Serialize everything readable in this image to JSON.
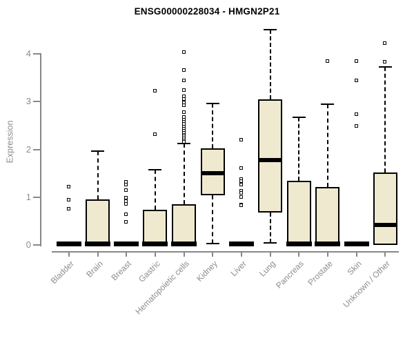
{
  "chart_data": {
    "type": "boxplot",
    "title": "ENSG00000228034 - HMGN2P21",
    "xlabel": "",
    "ylabel": "Expression",
    "yticks": [
      0,
      1,
      2,
      3,
      4
    ],
    "ylim": [
      0,
      4.6
    ],
    "grid": false,
    "legend": "none",
    "colors": {
      "box_fill": "#EFE9CF",
      "box_border": "#000000",
      "axis": "#878787",
      "tick_label": "#8c8c8c",
      "title": "#000000"
    },
    "categories": [
      "Bladder",
      "Brain",
      "Breast",
      "Gastric",
      "Hematopoietic cells",
      "Kidney",
      "Liver",
      "Lung",
      "Pancreas",
      "Prostate",
      "Skin",
      "Unknown / Other"
    ],
    "boxes": [
      {
        "category": "Bladder",
        "low": 0,
        "q1": 0,
        "median": 0,
        "q3": 0,
        "high": 0,
        "outliers": [
          1.22,
          0.94,
          0.75
        ]
      },
      {
        "category": "Brain",
        "low": 0,
        "q1": 0,
        "median": 0,
        "q3": 0.95,
        "high": 1.97,
        "outliers": []
      },
      {
        "category": "Breast",
        "low": 0,
        "q1": 0,
        "median": 0,
        "q3": 0,
        "high": 0,
        "outliers": [
          1.31,
          1.25,
          1.14,
          0.98,
          0.91,
          0.85,
          0.63,
          0.47
        ]
      },
      {
        "category": "Gastric",
        "low": 0,
        "q1": 0,
        "median": 0,
        "q3": 0.73,
        "high": 1.58,
        "outliers": [
          3.22,
          2.31
        ]
      },
      {
        "category": "Hematopoietic cells",
        "low": 0,
        "q1": 0,
        "median": 0,
        "q3": 0.85,
        "high": 2.12,
        "outliers": [
          4.03,
          3.66,
          3.44,
          3.24,
          3.1,
          3.05,
          2.98,
          2.92,
          2.77,
          2.67,
          2.62,
          2.57,
          2.52,
          2.47,
          2.43,
          2.38,
          2.34,
          2.3,
          2.26,
          2.22,
          2.18,
          2.15
        ]
      },
      {
        "category": "Kidney",
        "low": 0.03,
        "q1": 1.04,
        "median": 1.5,
        "q3": 2.02,
        "high": 2.96,
        "outliers": []
      },
      {
        "category": "Liver",
        "low": 0,
        "q1": 0,
        "median": 0,
        "q3": 0,
        "high": 0,
        "outliers": [
          2.2,
          1.61,
          1.37,
          1.33,
          1.25,
          1.13,
          1.08,
          0.99,
          0.84,
          0.82
        ]
      },
      {
        "category": "Lung",
        "low": 0.05,
        "q1": 0.68,
        "median": 1.77,
        "q3": 3.05,
        "high": 4.51,
        "outliers": []
      },
      {
        "category": "Pancreas",
        "low": 0,
        "q1": 0,
        "median": 0,
        "q3": 1.35,
        "high": 2.67,
        "outliers": []
      },
      {
        "category": "Prostate",
        "low": 0,
        "q1": 0,
        "median": 0,
        "q3": 1.22,
        "high": 2.94,
        "outliers": [
          3.84
        ]
      },
      {
        "category": "Skin",
        "low": 0,
        "q1": 0,
        "median": 0,
        "q3": 0,
        "high": 0,
        "outliers": [
          3.84,
          3.43,
          2.73,
          2.48
        ]
      },
      {
        "category": "Unknown / Other",
        "low": 0,
        "q1": 0,
        "median": 0.42,
        "q3": 1.51,
        "high": 3.72,
        "outliers": [
          4.21,
          3.82
        ]
      }
    ]
  }
}
